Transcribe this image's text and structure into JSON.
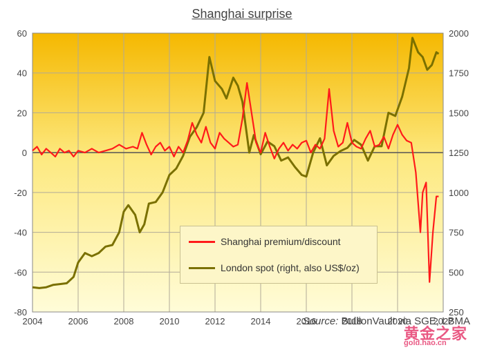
{
  "chart_data": {
    "type": "line",
    "title": "Shanghai surprise",
    "x_ticks": [
      "2004",
      "2006",
      "2008",
      "2010",
      "2012",
      "2014",
      "2016",
      "2018",
      "2020",
      "2022"
    ],
    "xlim": [
      2004,
      2022
    ],
    "y_left": {
      "ylim": [
        -80,
        60
      ],
      "ticks": [
        "60",
        "40",
        "20",
        "0",
        "-20",
        "-40",
        "-60",
        "-80"
      ]
    },
    "y_right": {
      "ylim": [
        250,
        2000
      ],
      "ticks": [
        "2000",
        "1750",
        "1500",
        "1250",
        "1000",
        "750",
        "500",
        "250"
      ]
    },
    "grid": true,
    "legend_position": "bottom-center",
    "series": [
      {
        "name": "Shanghai premium/discount",
        "axis": "left",
        "color": "#ff1a1a",
        "points": [
          [
            2004.0,
            1
          ],
          [
            2004.2,
            3
          ],
          [
            2004.4,
            -1
          ],
          [
            2004.6,
            2
          ],
          [
            2004.8,
            0
          ],
          [
            2005.0,
            -2
          ],
          [
            2005.2,
            2
          ],
          [
            2005.4,
            0
          ],
          [
            2005.6,
            1
          ],
          [
            2005.8,
            -2
          ],
          [
            2006.0,
            1
          ],
          [
            2006.3,
            0
          ],
          [
            2006.6,
            2
          ],
          [
            2006.9,
            0
          ],
          [
            2007.2,
            1
          ],
          [
            2007.5,
            2
          ],
          [
            2007.8,
            4
          ],
          [
            2008.1,
            2
          ],
          [
            2008.4,
            3
          ],
          [
            2008.6,
            2
          ],
          [
            2008.8,
            10
          ],
          [
            2009.0,
            4
          ],
          [
            2009.2,
            -1
          ],
          [
            2009.4,
            3
          ],
          [
            2009.6,
            5
          ],
          [
            2009.8,
            1
          ],
          [
            2010.0,
            3
          ],
          [
            2010.2,
            -2
          ],
          [
            2010.4,
            3
          ],
          [
            2010.6,
            0
          ],
          [
            2010.8,
            6
          ],
          [
            2011.0,
            15
          ],
          [
            2011.2,
            9
          ],
          [
            2011.4,
            5
          ],
          [
            2011.6,
            13
          ],
          [
            2011.8,
            5
          ],
          [
            2012.0,
            2
          ],
          [
            2012.2,
            10
          ],
          [
            2012.4,
            7
          ],
          [
            2012.6,
            5
          ],
          [
            2012.8,
            3
          ],
          [
            2013.0,
            4
          ],
          [
            2013.2,
            17
          ],
          [
            2013.4,
            35
          ],
          [
            2013.6,
            20
          ],
          [
            2013.8,
            5
          ],
          [
            2014.0,
            0
          ],
          [
            2014.2,
            10
          ],
          [
            2014.4,
            3
          ],
          [
            2014.6,
            -3
          ],
          [
            2014.8,
            2
          ],
          [
            2015.0,
            5
          ],
          [
            2015.2,
            1
          ],
          [
            2015.4,
            4
          ],
          [
            2015.6,
            2
          ],
          [
            2015.8,
            5
          ],
          [
            2016.0,
            6
          ],
          [
            2016.2,
            0
          ],
          [
            2016.4,
            4
          ],
          [
            2016.6,
            2
          ],
          [
            2016.8,
            7
          ],
          [
            2017.0,
            32
          ],
          [
            2017.2,
            11
          ],
          [
            2017.4,
            3
          ],
          [
            2017.6,
            5
          ],
          [
            2017.8,
            15
          ],
          [
            2018.0,
            5
          ],
          [
            2018.2,
            3
          ],
          [
            2018.4,
            2
          ],
          [
            2018.6,
            7
          ],
          [
            2018.8,
            11
          ],
          [
            2019.0,
            3
          ],
          [
            2019.2,
            4
          ],
          [
            2019.4,
            8
          ],
          [
            2019.6,
            2
          ],
          [
            2019.8,
            9
          ],
          [
            2020.0,
            14
          ],
          [
            2020.2,
            9
          ],
          [
            2020.4,
            6
          ],
          [
            2020.6,
            5
          ],
          [
            2020.8,
            -10
          ],
          [
            2021.0,
            -40
          ],
          [
            2021.1,
            -20
          ],
          [
            2021.25,
            -15
          ],
          [
            2021.4,
            -65
          ],
          [
            2021.55,
            -40
          ],
          [
            2021.7,
            -22
          ],
          [
            2021.8,
            -22
          ]
        ]
      },
      {
        "name": "London spot (right, also US$/oz)",
        "axis": "right",
        "color": "#7a7000",
        "points": [
          [
            2004.0,
            405
          ],
          [
            2004.3,
            400
          ],
          [
            2004.6,
            405
          ],
          [
            2004.9,
            420
          ],
          [
            2005.2,
            425
          ],
          [
            2005.5,
            430
          ],
          [
            2005.8,
            470
          ],
          [
            2006.0,
            560
          ],
          [
            2006.3,
            620
          ],
          [
            2006.6,
            600
          ],
          [
            2006.9,
            620
          ],
          [
            2007.2,
            660
          ],
          [
            2007.5,
            670
          ],
          [
            2007.8,
            750
          ],
          [
            2008.0,
            880
          ],
          [
            2008.2,
            920
          ],
          [
            2008.5,
            860
          ],
          [
            2008.7,
            750
          ],
          [
            2008.9,
            800
          ],
          [
            2009.1,
            930
          ],
          [
            2009.4,
            940
          ],
          [
            2009.7,
            1000
          ],
          [
            2010.0,
            1110
          ],
          [
            2010.3,
            1150
          ],
          [
            2010.6,
            1230
          ],
          [
            2010.9,
            1350
          ],
          [
            2011.2,
            1410
          ],
          [
            2011.5,
            1500
          ],
          [
            2011.75,
            1850
          ],
          [
            2012.0,
            1700
          ],
          [
            2012.3,
            1650
          ],
          [
            2012.5,
            1590
          ],
          [
            2012.8,
            1720
          ],
          [
            2013.0,
            1670
          ],
          [
            2013.2,
            1570
          ],
          [
            2013.5,
            1250
          ],
          [
            2013.7,
            1360
          ],
          [
            2014.0,
            1240
          ],
          [
            2014.3,
            1320
          ],
          [
            2014.6,
            1290
          ],
          [
            2014.9,
            1200
          ],
          [
            2015.2,
            1220
          ],
          [
            2015.5,
            1160
          ],
          [
            2015.8,
            1110
          ],
          [
            2016.0,
            1100
          ],
          [
            2016.3,
            1250
          ],
          [
            2016.6,
            1340
          ],
          [
            2016.9,
            1170
          ],
          [
            2017.2,
            1230
          ],
          [
            2017.5,
            1260
          ],
          [
            2017.8,
            1280
          ],
          [
            2018.1,
            1330
          ],
          [
            2018.4,
            1300
          ],
          [
            2018.7,
            1200
          ],
          [
            2019.0,
            1290
          ],
          [
            2019.3,
            1290
          ],
          [
            2019.6,
            1500
          ],
          [
            2019.9,
            1480
          ],
          [
            2020.2,
            1600
          ],
          [
            2020.5,
            1780
          ],
          [
            2020.65,
            1970
          ],
          [
            2020.9,
            1880
          ],
          [
            2021.1,
            1850
          ],
          [
            2021.3,
            1770
          ],
          [
            2021.5,
            1800
          ],
          [
            2021.7,
            1880
          ],
          [
            2021.8,
            1870
          ]
        ]
      }
    ]
  },
  "source": {
    "label": "Source:",
    "text": "BullionVault via SGE, LBMA"
  },
  "watermark": {
    "main": "黄金之家",
    "sub": "gold.hao.cn"
  }
}
